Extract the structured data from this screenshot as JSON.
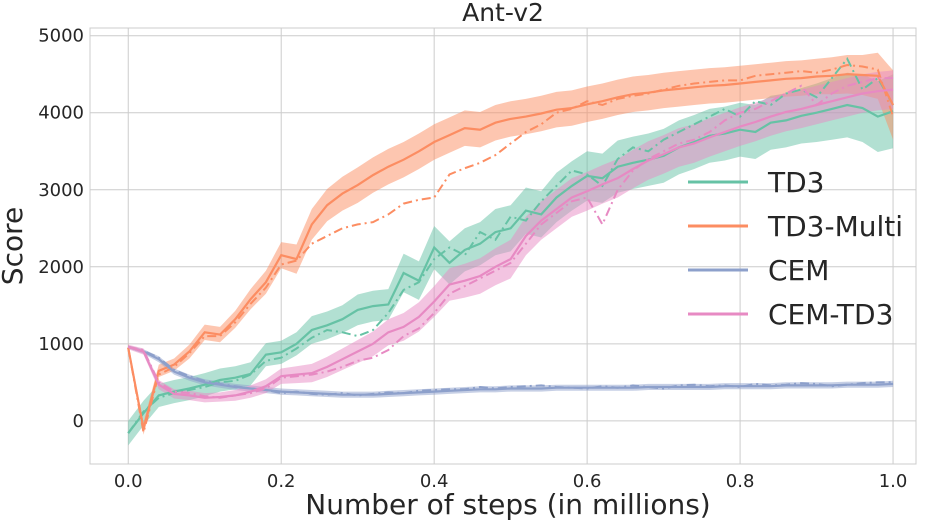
{
  "chart_data": {
    "type": "line",
    "title": "Ant-v2",
    "xlabel": "Number of steps (in millions)",
    "ylabel": "Score",
    "xlim": [
      -0.05,
      1.03
    ],
    "ylim": [
      -560,
      5100
    ],
    "xticks": [
      0.0,
      0.2,
      0.4,
      0.6,
      0.8,
      1.0
    ],
    "xtick_labels": [
      "0.0",
      "0.2",
      "0.4",
      "0.6",
      "0.8",
      "1.0"
    ],
    "yticks": [
      0,
      1000,
      2000,
      3000,
      4000,
      5000
    ],
    "ytick_labels": [
      "0",
      "1000",
      "2000",
      "3000",
      "4000",
      "5000"
    ],
    "grid": true,
    "legend_position": "center-right",
    "x": [
      0.0,
      0.02,
      0.04,
      0.06,
      0.08,
      0.1,
      0.12,
      0.14,
      0.16,
      0.18,
      0.2,
      0.22,
      0.24,
      0.26,
      0.28,
      0.3,
      0.32,
      0.34,
      0.36,
      0.38,
      0.4,
      0.42,
      0.44,
      0.46,
      0.48,
      0.5,
      0.52,
      0.54,
      0.56,
      0.58,
      0.6,
      0.62,
      0.64,
      0.66,
      0.68,
      0.7,
      0.72,
      0.74,
      0.76,
      0.78,
      0.8,
      0.82,
      0.84,
      0.86,
      0.88,
      0.9,
      0.92,
      0.94,
      0.96,
      0.98,
      1.0
    ],
    "series": [
      {
        "name": "TD3",
        "color": "#66c2a5",
        "mean": [
          -160,
          100,
          330,
          380,
          420,
          470,
          530,
          560,
          610,
          860,
          890,
          1000,
          1180,
          1240,
          1320,
          1440,
          1490,
          1510,
          1920,
          1820,
          2250,
          2050,
          2220,
          2300,
          2450,
          2500,
          2730,
          2680,
          2900,
          3050,
          3180,
          3150,
          3300,
          3350,
          3390,
          3440,
          3550,
          3620,
          3700,
          3730,
          3780,
          3750,
          3870,
          3900,
          3960,
          4000,
          4050,
          4100,
          4060,
          3950,
          4020
        ],
        "band": [
          160,
          160,
          150,
          150,
          150,
          150,
          150,
          150,
          150,
          150,
          150,
          150,
          180,
          180,
          180,
          200,
          200,
          200,
          250,
          250,
          280,
          280,
          280,
          280,
          300,
          300,
          300,
          300,
          320,
          320,
          320,
          320,
          340,
          340,
          340,
          350,
          350,
          350,
          350,
          350,
          350,
          350,
          350,
          350,
          360,
          380,
          400,
          420,
          440,
          460,
          480
        ],
        "alt": [
          -160,
          120,
          300,
          360,
          400,
          440,
          500,
          520,
          600,
          780,
          820,
          940,
          1080,
          1180,
          1150,
          1100,
          1180,
          1400,
          1700,
          1800,
          2100,
          2250,
          2150,
          2450,
          2350,
          2650,
          2600,
          2850,
          3050,
          3250,
          3200,
          3050,
          3400,
          3550,
          3500,
          3650,
          3750,
          3850,
          3950,
          4050,
          3950,
          4150,
          4100,
          4250,
          4300,
          4200,
          4450,
          4700,
          4300,
          4450,
          4100
        ]
      },
      {
        "name": "TD3-Multi",
        "color": "#fc8d62",
        "mean": [
          950,
          -100,
          650,
          730,
          900,
          1150,
          1120,
          1320,
          1580,
          1800,
          2150,
          2100,
          2550,
          2800,
          2950,
          3060,
          3190,
          3300,
          3390,
          3500,
          3620,
          3710,
          3800,
          3780,
          3870,
          3920,
          3950,
          3990,
          4040,
          4060,
          4110,
          4150,
          4200,
          4240,
          4260,
          4290,
          4310,
          4330,
          4350,
          4360,
          4380,
          4400,
          4420,
          4440,
          4450,
          4470,
          4480,
          4500,
          4490,
          4480,
          4100
        ],
        "band": [
          60,
          80,
          80,
          80,
          90,
          100,
          100,
          110,
          130,
          150,
          170,
          190,
          200,
          210,
          220,
          230,
          230,
          230,
          230,
          230,
          230,
          230,
          230,
          230,
          230,
          230,
          230,
          230,
          230,
          230,
          230,
          230,
          230,
          230,
          230,
          230,
          230,
          230,
          230,
          230,
          230,
          230,
          230,
          230,
          230,
          230,
          240,
          250,
          260,
          300,
          450
        ],
        "alt": [
          950,
          -150,
          600,
          700,
          880,
          1100,
          1100,
          1280,
          1520,
          1730,
          2030,
          2080,
          2300,
          2400,
          2500,
          2550,
          2580,
          2680,
          2820,
          2870,
          2900,
          3200,
          3280,
          3350,
          3450,
          3600,
          3750,
          3850,
          4000,
          4050,
          4150,
          4100,
          4180,
          4220,
          4250,
          4300,
          4350,
          4380,
          4400,
          4420,
          4420,
          4480,
          4500,
          4520,
          4540,
          4520,
          4560,
          4620,
          4600,
          4560,
          3950
        ]
      },
      {
        "name": "CEM",
        "color": "#8da0cb",
        "mean": [
          960,
          900,
          800,
          640,
          560,
          500,
          470,
          440,
          420,
          400,
          380,
          370,
          360,
          350,
          340,
          340,
          340,
          350,
          360,
          370,
          380,
          390,
          400,
          410,
          410,
          420,
          420,
          420,
          430,
          430,
          430,
          430,
          430,
          430,
          440,
          440,
          440,
          440,
          440,
          450,
          450,
          450,
          450,
          460,
          460,
          460,
          460,
          470,
          470,
          470,
          480
        ],
        "band": [
          20,
          30,
          40,
          40,
          40,
          40,
          40,
          40,
          40,
          40,
          40,
          40,
          40,
          40,
          40,
          40,
          40,
          40,
          40,
          40,
          40,
          40,
          40,
          40,
          40,
          40,
          40,
          40,
          40,
          40,
          40,
          40,
          40,
          40,
          40,
          40,
          40,
          40,
          40,
          40,
          40,
          40,
          40,
          40,
          40,
          40,
          40,
          40,
          40,
          40,
          40
        ],
        "alt": [
          960,
          910,
          820,
          660,
          580,
          520,
          480,
          450,
          420,
          400,
          360,
          380,
          350,
          340,
          360,
          330,
          350,
          370,
          360,
          390,
          400,
          410,
          410,
          440,
          420,
          440,
          450,
          460,
          440,
          430,
          420,
          450,
          430,
          460,
          440,
          420,
          460,
          470,
          450,
          460,
          440,
          480,
          460,
          470,
          490,
          480,
          450,
          470,
          490,
          500,
          500
        ]
      },
      {
        "name": "CEM-TD3",
        "color": "#e78ac3",
        "mean": [
          960,
          900,
          470,
          350,
          330,
          300,
          310,
          330,
          380,
          450,
          580,
          600,
          620,
          700,
          800,
          900,
          1000,
          1150,
          1220,
          1350,
          1550,
          1770,
          1820,
          1880,
          2000,
          2100,
          2400,
          2600,
          2750,
          2900,
          2980,
          3070,
          3150,
          3270,
          3380,
          3460,
          3550,
          3600,
          3680,
          3750,
          3820,
          3880,
          3950,
          4010,
          4050,
          4100,
          4150,
          4200,
          4250,
          4280,
          4300
        ],
        "band": [
          30,
          40,
          60,
          60,
          60,
          60,
          60,
          70,
          80,
          90,
          100,
          110,
          120,
          130,
          140,
          150,
          160,
          170,
          180,
          190,
          200,
          210,
          220,
          230,
          240,
          250,
          250,
          250,
          250,
          250,
          250,
          250,
          250,
          250,
          250,
          250,
          250,
          250,
          250,
          250,
          250,
          250,
          250,
          250,
          250,
          250,
          250,
          250,
          250,
          250,
          250
        ],
        "alt": [
          960,
          920,
          500,
          380,
          360,
          320,
          300,
          330,
          360,
          420,
          560,
          580,
          600,
          640,
          700,
          780,
          820,
          920,
          1100,
          1200,
          1400,
          1650,
          1750,
          1850,
          1950,
          2050,
          2300,
          2550,
          2700,
          2850,
          2900,
          2550,
          3000,
          3250,
          3400,
          3500,
          3600,
          3650,
          3750,
          3900,
          4000,
          4050,
          4150,
          4250,
          4350,
          4100,
          4250,
          4350,
          4400,
          4450,
          4450
        ]
      }
    ]
  }
}
